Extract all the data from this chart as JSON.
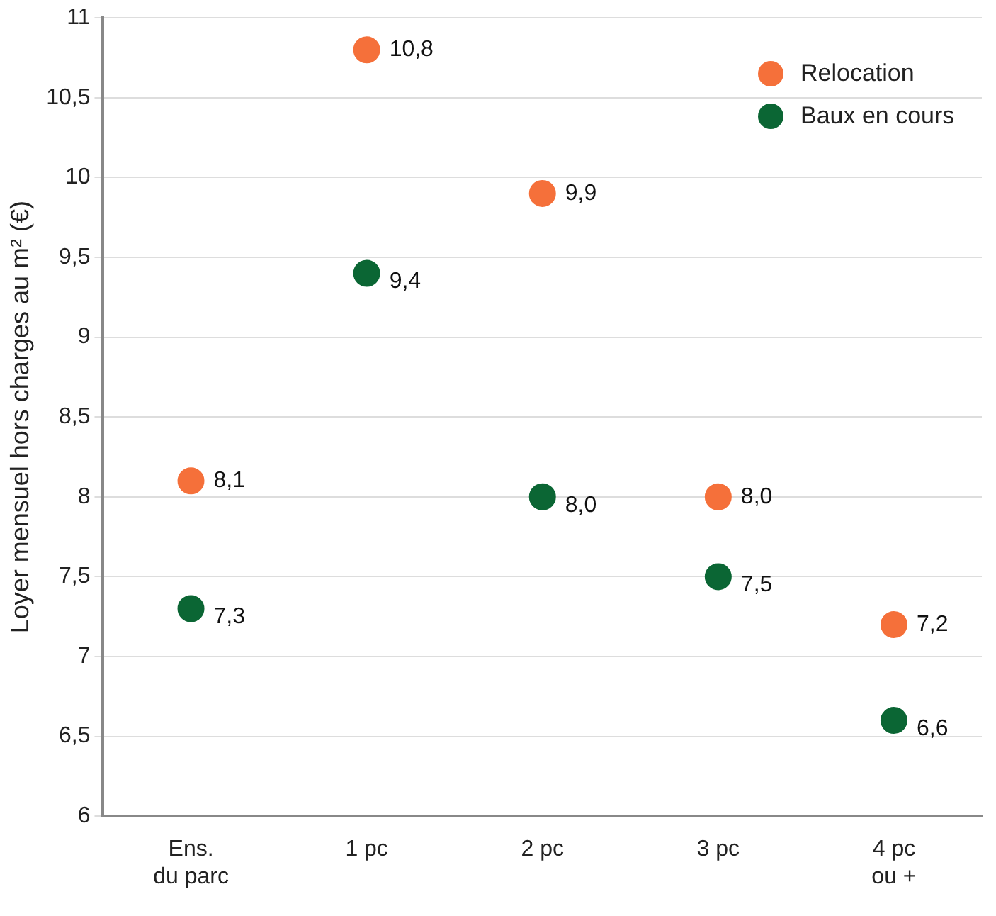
{
  "chart_data": {
    "type": "scatter",
    "ylabel": "Loyer mensuel hors charges au m² (€)",
    "categories": [
      "Ens.\ndu parc",
      "1 pc",
      "2 pc",
      "3 pc",
      "4 pc\nou +"
    ],
    "series": [
      {
        "name": "Relocation",
        "color": "#f5703a",
        "values": [
          8.1,
          10.8,
          9.9,
          8.0,
          7.2
        ],
        "value_labels": [
          "8,1",
          "10,8",
          "9,9",
          "8,0",
          "7,2"
        ]
      },
      {
        "name": "Baux en cours",
        "color": "#0b6634",
        "values": [
          7.3,
          9.4,
          8.0,
          7.5,
          6.6
        ],
        "value_labels": [
          "7,3",
          "9,4",
          "8,0",
          "7,5",
          "6,6"
        ]
      }
    ],
    "ylim": [
      6,
      11
    ],
    "yticks": [
      6,
      {
        "value": 6.5,
        "label": "6,5"
      },
      7,
      {
        "value": 7.5,
        "label": "7,5"
      },
      8,
      {
        "value": 8.5,
        "label": "8,5"
      },
      9,
      {
        "value": 9.5,
        "label": "9,5"
      },
      10,
      {
        "value": 10.5,
        "label": "10,5"
      },
      11
    ],
    "grid": "y",
    "legend": "top right",
    "marker": "circle"
  }
}
